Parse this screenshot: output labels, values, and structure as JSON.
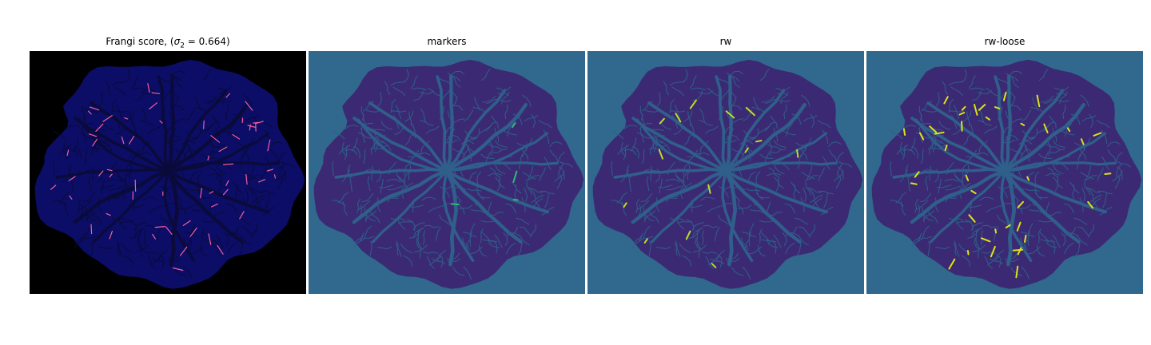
{
  "figure": {
    "panels": [
      {
        "key": "frangi",
        "title_prefix": "Frangi score, (",
        "title_sigma": "σ",
        "title_sub": "2",
        "title_suffix": " = 0.664)",
        "background": "#000000",
        "disc_fill": "#0b0d66",
        "vessel_color": "#0a0b3a",
        "highlight_color": "#f25fa0"
      },
      {
        "key": "markers",
        "title": "markers",
        "background": "#31688e",
        "disc_fill": "#3b2a73",
        "vessel_color": "#2f5f8a",
        "highlight_color": "#35b779"
      },
      {
        "key": "rw",
        "title": "rw",
        "background": "#31688e",
        "disc_fill": "#3b2a73",
        "vessel_color": "#2f5f8a",
        "highlight_color": "#bddf26"
      },
      {
        "key": "rw-loose",
        "title": "rw-loose",
        "background": "#31688e",
        "disc_fill": "#3b2a73",
        "vessel_color": "#2f5f8a",
        "highlight_color": "#dde318"
      }
    ]
  }
}
